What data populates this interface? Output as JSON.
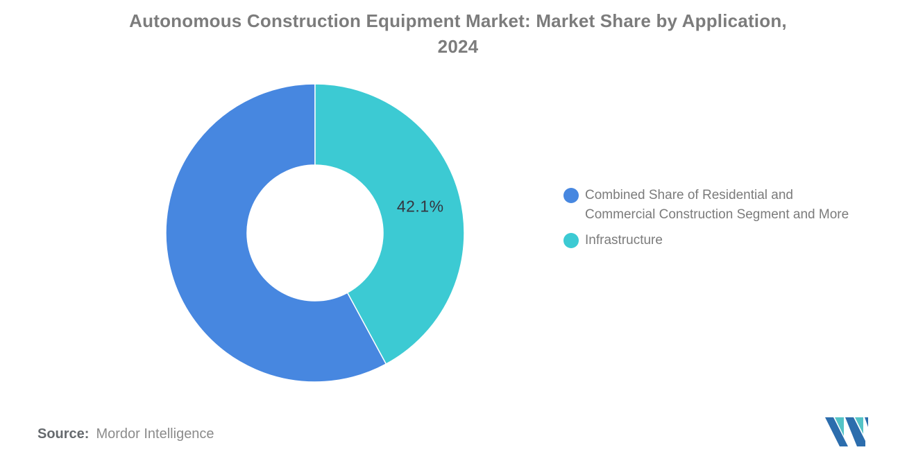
{
  "title": {
    "line1": "Autonomous Construction Equipment Market: Market Share by Application,",
    "line2": "2024"
  },
  "chart_data": {
    "type": "pie",
    "subtype": "donut",
    "title": "Autonomous Construction Equipment Market: Market Share by Application, 2024",
    "segments": [
      {
        "name": "Combined Share of Residential and Commercial Construction Segment and More",
        "value": 57.9,
        "color": "#4787E0",
        "label": ""
      },
      {
        "name": "Infrastructure",
        "value": 42.1,
        "color": "#3CCAD3",
        "label": "42.1%"
      }
    ],
    "start_angle": "12-oclock",
    "direction": "counterclockwise",
    "inner_radius_ratio": 0.455,
    "slice_label_color": "#35353F",
    "slice_separator_color": "#FFFFFF",
    "legend_position": "right",
    "background": "#FFFFFF"
  },
  "source": {
    "label": "Source:",
    "value": "Mordor Intelligence"
  },
  "logo": {
    "name": "mordor-intelligence-logo",
    "blue": "#2C6DAD",
    "teal": "#54C3C6"
  }
}
